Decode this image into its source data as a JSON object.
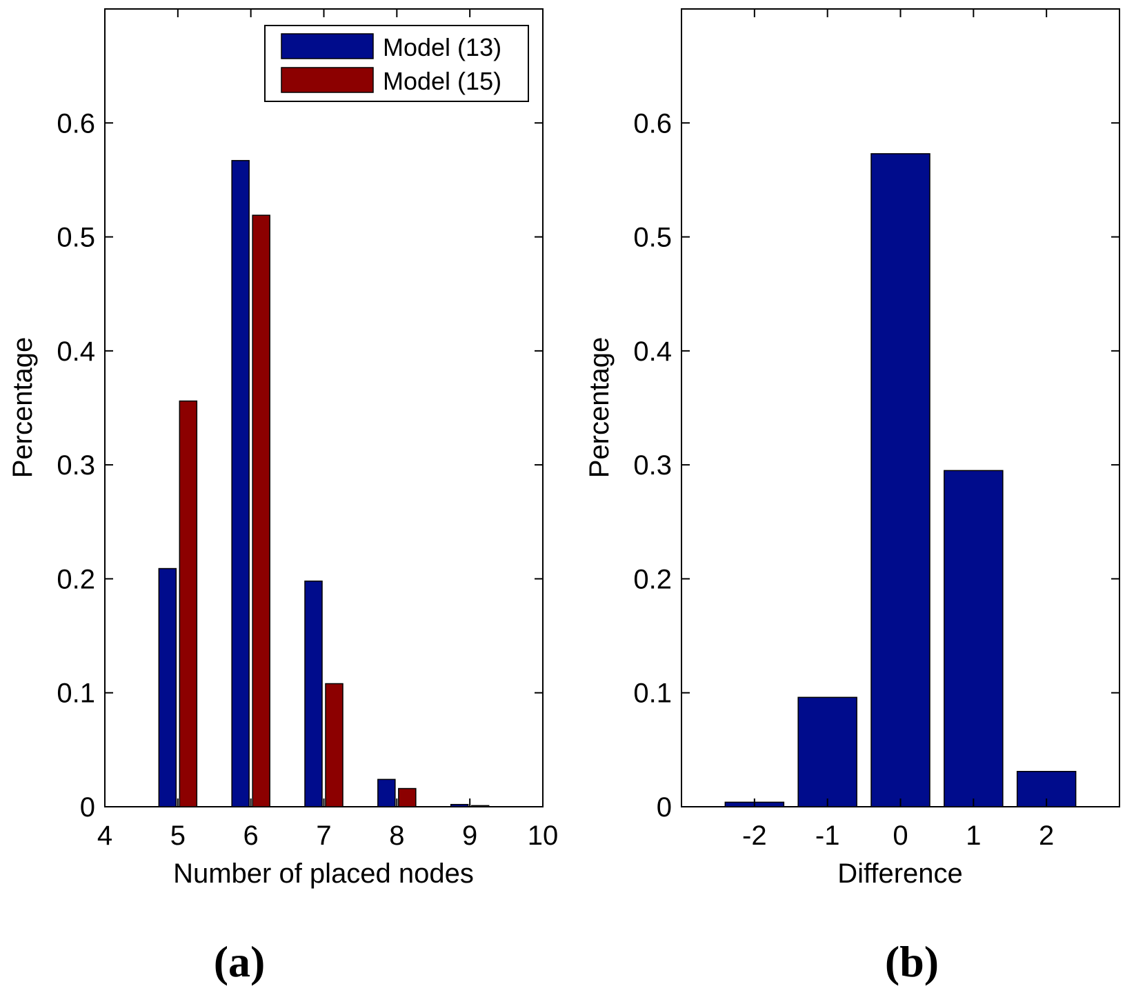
{
  "colors": {
    "series1": "#000c8c",
    "series2": "#8c0000",
    "axis": "#000000"
  },
  "panel_labels": {
    "a": "(a)",
    "b": "(b)"
  },
  "chart_data": [
    {
      "type": "bar",
      "panel": "a",
      "title": "",
      "xlabel": "Number of placed nodes",
      "ylabel": "Percentage",
      "xlim": [
        4,
        10
      ],
      "ylim": [
        0,
        0.7
      ],
      "xticks": [
        "4",
        "5",
        "6",
        "7",
        "8",
        "9",
        "10"
      ],
      "yticks": [
        "0",
        "0.1",
        "0.2",
        "0.3",
        "0.4",
        "0.5",
        "0.6"
      ],
      "categories": [
        5,
        6,
        7,
        8,
        9
      ],
      "series": [
        {
          "name": "Model (13)",
          "color": "#000c8c",
          "values": [
            0.209,
            0.567,
            0.198,
            0.024,
            0.002
          ]
        },
        {
          "name": "Model (15)",
          "color": "#8c0000",
          "values": [
            0.356,
            0.519,
            0.108,
            0.016,
            0.001
          ]
        }
      ],
      "legend": {
        "position": "top-right",
        "entries": [
          "Model (13)",
          "Model (15)"
        ]
      },
      "grid": false
    },
    {
      "type": "bar",
      "panel": "b",
      "title": "",
      "xlabel": "Difference",
      "ylabel": "Percentage",
      "xlim": [
        -3,
        3
      ],
      "ylim": [
        0,
        0.7
      ],
      "xticks": [
        "-2",
        "-1",
        "0",
        "1",
        "2"
      ],
      "yticks": [
        "0",
        "0.1",
        "0.2",
        "0.3",
        "0.4",
        "0.5",
        "0.6"
      ],
      "categories": [
        -2,
        -1,
        0,
        1,
        2
      ],
      "series": [
        {
          "name": "Difference",
          "color": "#000c8c",
          "values": [
            0.004,
            0.096,
            0.573,
            0.295,
            0.031
          ]
        }
      ],
      "grid": false
    }
  ]
}
